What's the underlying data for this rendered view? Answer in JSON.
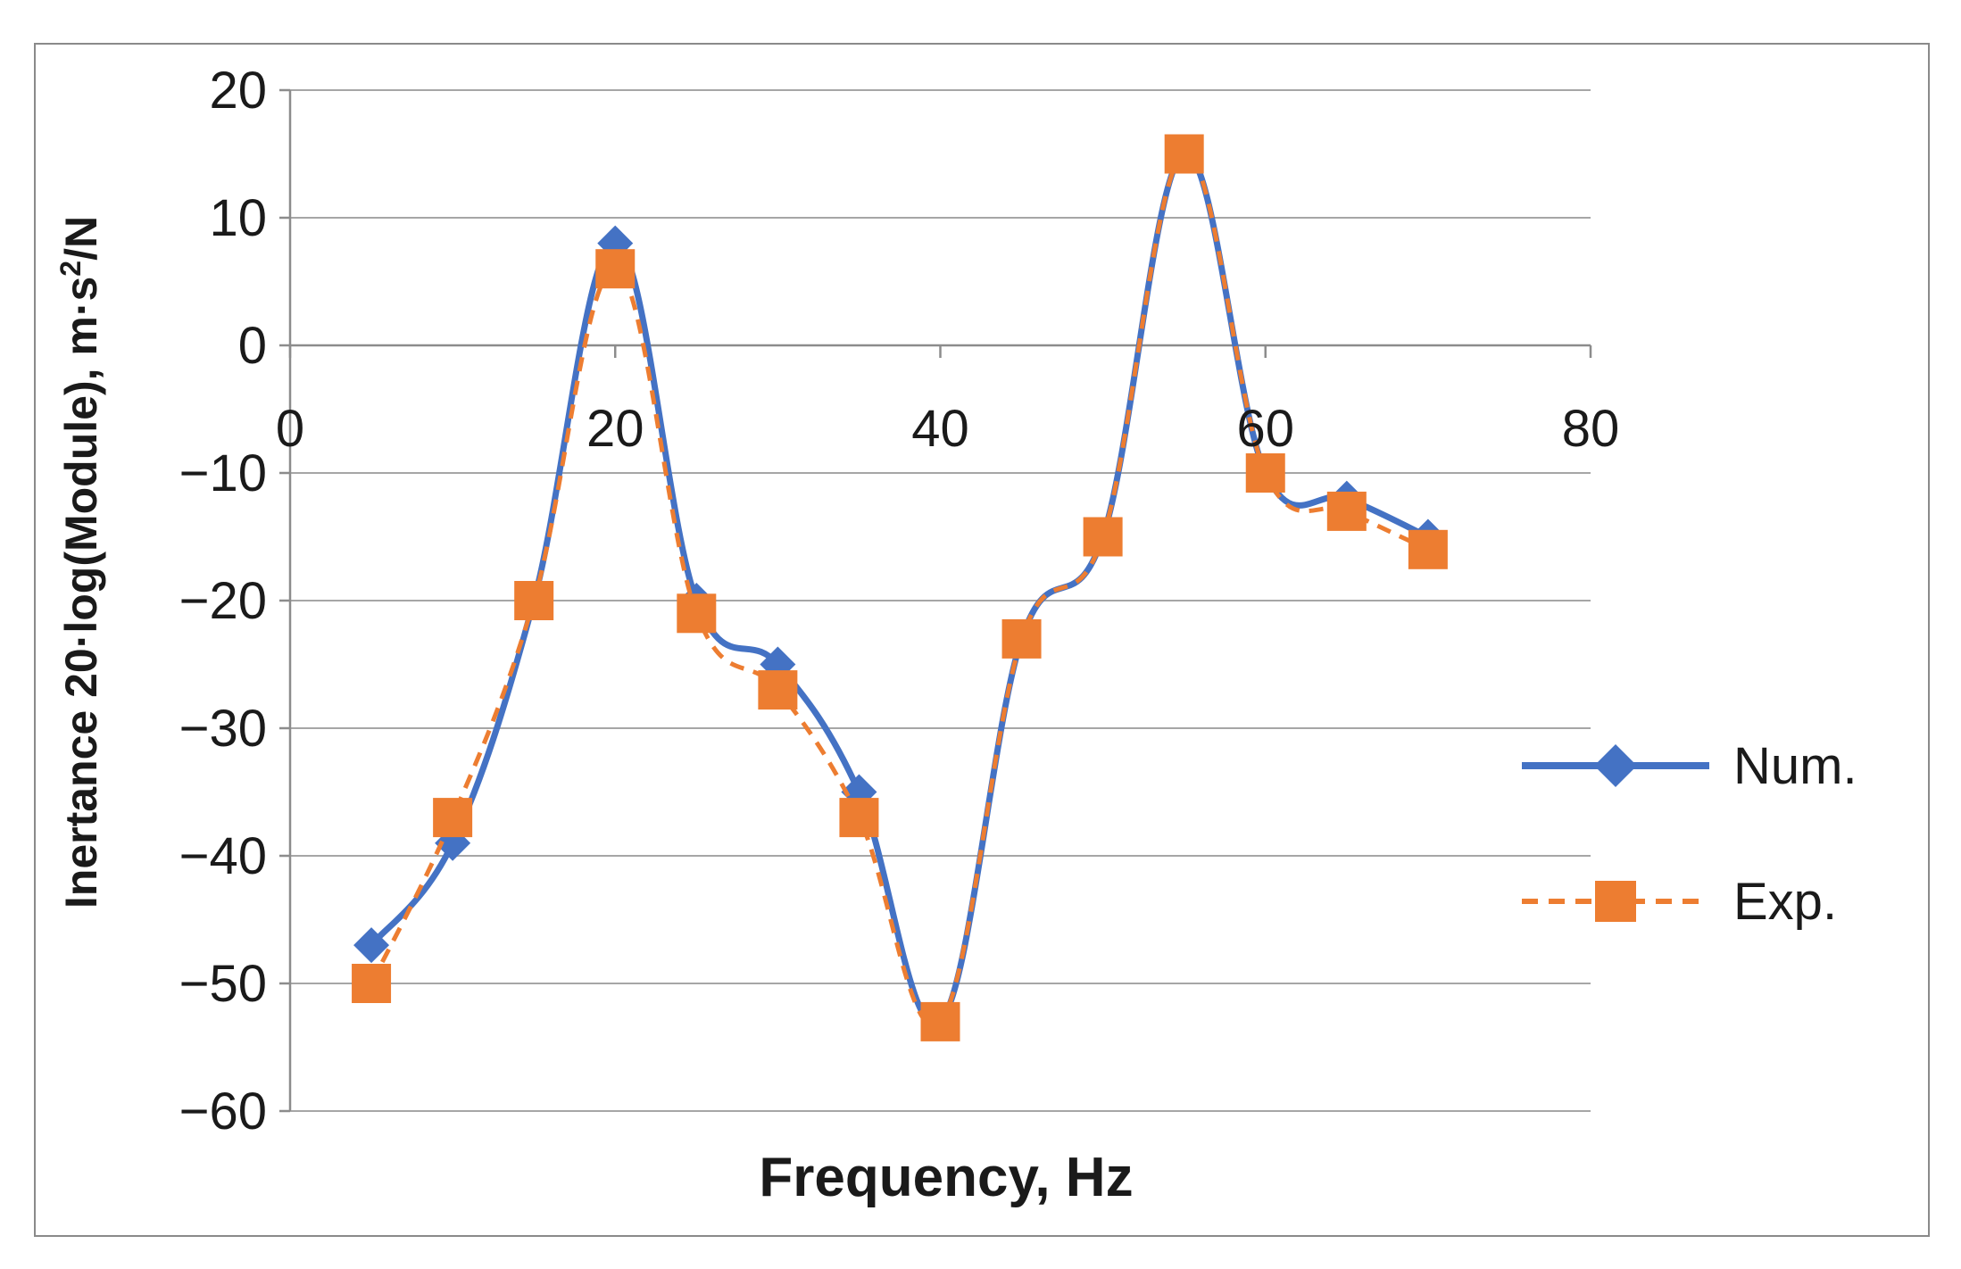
{
  "chart_data": {
    "type": "line",
    "title": "",
    "xlabel": "Frequency, Hz",
    "ylabel_main": "Inertance 20·log(Module), m·s",
    "ylabel_sup": "2",
    "ylabel_tail": "/N",
    "xlim": [
      0,
      80
    ],
    "ylim": [
      -60,
      20
    ],
    "x_ticks": [
      0,
      20,
      40,
      60,
      80
    ],
    "y_ticks": [
      20,
      10,
      0,
      -10,
      -20,
      -30,
      -40,
      -50,
      -60
    ],
    "x_tick_labels": [
      "0",
      "20",
      "40",
      "60",
      "80"
    ],
    "y_tick_labels": [
      "20",
      "10",
      "0",
      "−10",
      "−20",
      "−30",
      "−40",
      "−50",
      "−60"
    ],
    "grid": true,
    "legend_position": "right",
    "series": [
      {
        "name": "Num.",
        "color": "#4472C4",
        "marker": "diamond",
        "dash": "solid",
        "x": [
          5,
          10,
          15,
          20,
          25,
          30,
          35,
          40,
          45,
          50,
          55,
          60,
          65,
          70
        ],
        "y": [
          -47,
          -39,
          -20,
          8,
          -20,
          -25,
          -35,
          -53,
          -23,
          -15,
          15,
          -10,
          -12,
          -15
        ]
      },
      {
        "name": "Exp.",
        "color": "#ED7D31",
        "marker": "square",
        "dash": "dashed",
        "x": [
          5,
          10,
          15,
          20,
          25,
          30,
          35,
          40,
          45,
          50,
          55,
          60,
          65,
          70
        ],
        "y": [
          -50,
          -37,
          -20,
          6,
          -21,
          -27,
          -37,
          -53,
          -23,
          -15,
          15,
          -10,
          -13,
          -16
        ]
      }
    ]
  }
}
